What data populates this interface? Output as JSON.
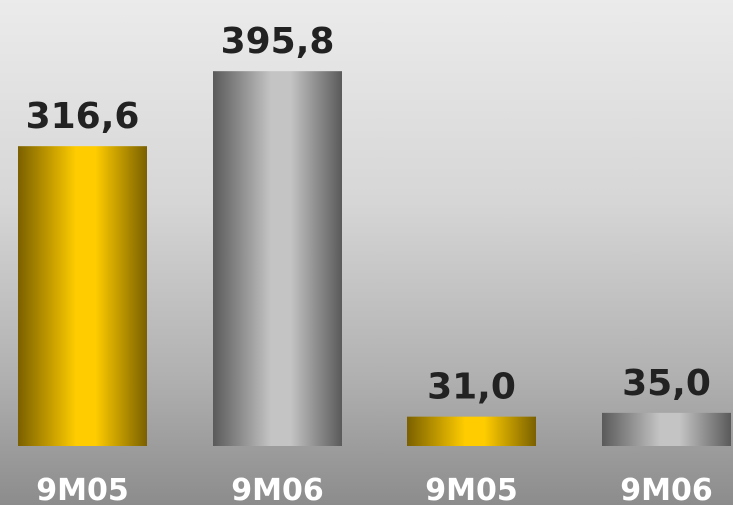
{
  "chart_data": {
    "type": "bar",
    "title": "",
    "xlabel": "",
    "ylabel": "",
    "grid": false,
    "bars": [
      {
        "category": "9M05",
        "value": 316.6,
        "label": "316,6",
        "color": "gold"
      },
      {
        "category": "9M06",
        "value": 395.8,
        "label": "395,8",
        "color": "silver"
      },
      {
        "category": "9M05",
        "value": 31.0,
        "label": "31,0",
        "color": "gold"
      },
      {
        "category": "9M06",
        "value": 35.0,
        "label": "35,0",
        "color": "silver"
      }
    ],
    "colors": {
      "gold": "#ffcc00",
      "silver": "#bdbdbd"
    }
  }
}
